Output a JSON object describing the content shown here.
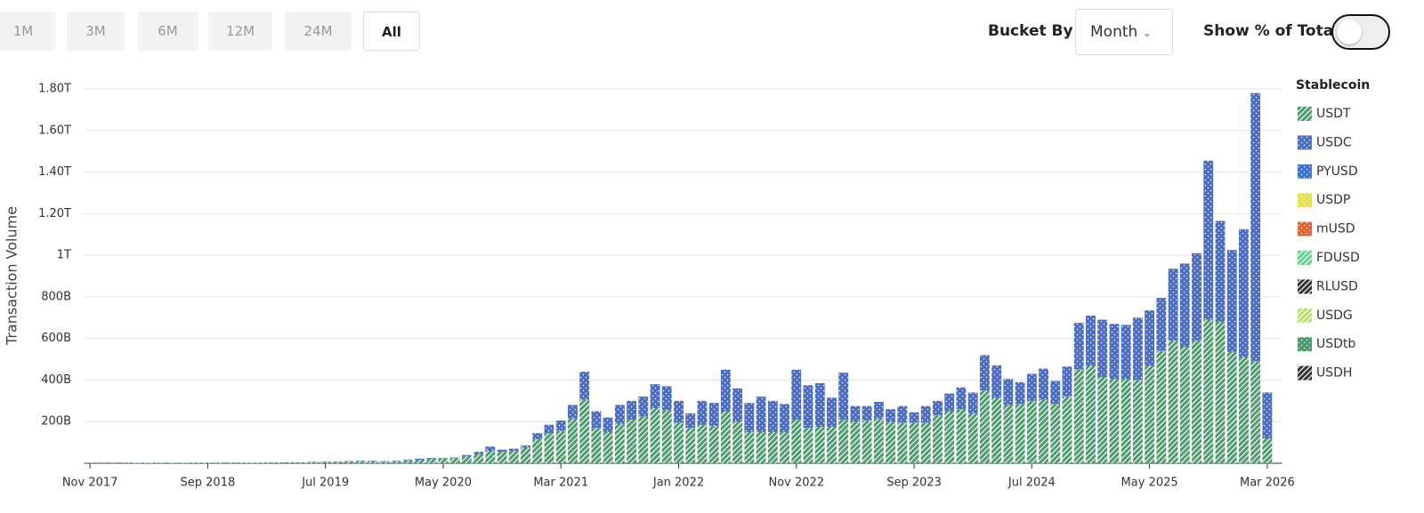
{
  "ui": {
    "range_buttons": [
      "1M",
      "3M",
      "6M",
      "12M",
      "24M",
      "All"
    ],
    "active_range": "All",
    "bucket_label": "Bucket By",
    "bucket_value": "Month",
    "toggle_label": "Show % of Total"
  },
  "chart_data": {
    "type": "stacked_bar",
    "y_label": "Transaction Volume",
    "legend_title": "Stablecoin",
    "categories": [
      "Nov 2017",
      null,
      null,
      null,
      null,
      null,
      null,
      null,
      null,
      null,
      "Sep 2018",
      null,
      null,
      null,
      null,
      null,
      null,
      null,
      null,
      null,
      "Jul 2019",
      null,
      null,
      null,
      null,
      null,
      null,
      null,
      null,
      null,
      "May 2020",
      null,
      null,
      null,
      null,
      null,
      null,
      null,
      null,
      null,
      "Mar 2021",
      null,
      null,
      null,
      null,
      null,
      null,
      null,
      null,
      null,
      "Jan 2022",
      null,
      null,
      null,
      null,
      null,
      null,
      null,
      null,
      null,
      "Nov 2022",
      null,
      null,
      null,
      null,
      null,
      null,
      null,
      null,
      null,
      "Sep 2023",
      null,
      null,
      null,
      null,
      null,
      null,
      null,
      null,
      null,
      "Jul 2024",
      null,
      null,
      null,
      null,
      null,
      null,
      null,
      null,
      null,
      "May 2025",
      null,
      null,
      null,
      null,
      null,
      null,
      null,
      null,
      null,
      "Mar 2026"
    ],
    "series": [
      {
        "name": "USDT",
        "color": "#4e9a6e",
        "pattern": "hatch",
        "values": [
          1,
          1,
          1,
          1,
          2,
          2,
          2,
          2,
          2,
          3,
          3,
          3,
          3,
          3,
          3,
          4,
          4,
          5,
          5,
          6,
          7,
          7,
          8,
          10,
          10,
          8,
          10,
          14,
          17,
          20,
          22,
          25,
          35,
          45,
          60,
          55,
          60,
          75,
          115,
          145,
          155,
          215,
          305,
          170,
          150,
          190,
          210,
          225,
          265,
          255,
          195,
          170,
          185,
          180,
          250,
          200,
          150,
          150,
          150,
          150,
          210,
          170,
          175,
          175,
          210,
          200,
          205,
          215,
          200,
          195,
          195,
          195,
          230,
          250,
          260,
          240,
          350,
          315,
          280,
          285,
          300,
          305,
          285,
          320,
          450,
          470,
          415,
          405,
          405,
          400,
          470,
          540,
          590,
          560,
          590,
          690,
          680,
          535,
          510,
          490,
          120
        ]
      },
      {
        "name": "USDC",
        "color": "#4a6cc4",
        "pattern": "dots",
        "values": [
          0,
          0,
          0,
          0,
          0,
          0,
          0,
          0,
          0,
          0,
          0,
          0,
          0,
          0,
          0,
          0,
          0,
          0,
          0,
          1,
          1,
          1,
          2,
          2,
          2,
          2,
          2,
          4,
          5,
          5,
          3,
          3,
          5,
          10,
          20,
          10,
          10,
          10,
          30,
          40,
          50,
          65,
          135,
          80,
          70,
          90,
          90,
          95,
          115,
          115,
          105,
          70,
          115,
          110,
          200,
          160,
          140,
          170,
          150,
          135,
          240,
          205,
          210,
          140,
          225,
          75,
          70,
          80,
          60,
          80,
          50,
          80,
          70,
          85,
          105,
          100,
          170,
          155,
          125,
          105,
          130,
          150,
          110,
          145,
          225,
          240,
          275,
          265,
          260,
          300,
          265,
          255,
          345,
          400,
          420,
          765,
          485,
          490,
          615,
          1290,
          220
        ]
      },
      {
        "name": "PYUSD",
        "color": "#3b6fd9",
        "pattern": "dots"
      },
      {
        "name": "USDP",
        "color": "#e6df4a",
        "pattern": "dots"
      },
      {
        "name": "mUSD",
        "color": "#e0622d",
        "pattern": "dots"
      },
      {
        "name": "FDUSD",
        "color": "#5fd38a",
        "pattern": "hatch"
      },
      {
        "name": "RLUSD",
        "color": "#333333",
        "pattern": "hatch"
      },
      {
        "name": "USDG",
        "color": "#b6e06a",
        "pattern": "hatch"
      },
      {
        "name": "USDtb",
        "color": "#4a9a6a",
        "pattern": "dots"
      },
      {
        "name": "USDH",
        "color": "#333333",
        "pattern": "hatch"
      }
    ],
    "ylim": [
      0,
      1800
    ],
    "yticks": [
      {
        "value": 200,
        "label": "200B"
      },
      {
        "value": 400,
        "label": "400B"
      },
      {
        "value": 600,
        "label": "600B"
      },
      {
        "value": 800,
        "label": "800B"
      },
      {
        "value": 1000,
        "label": "1T"
      },
      {
        "value": 1200,
        "label": "1.20T"
      },
      {
        "value": 1400,
        "label": "1.40T"
      },
      {
        "value": 1600,
        "label": "1.60T"
      },
      {
        "value": 1800,
        "label": "1.80T"
      }
    ],
    "grid": true
  }
}
